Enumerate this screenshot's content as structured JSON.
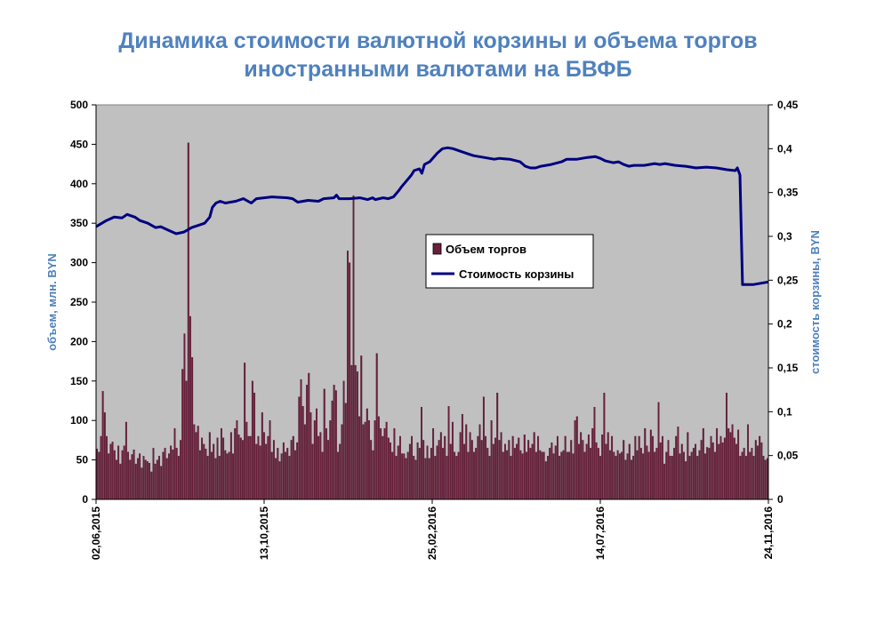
{
  "chart_data": {
    "type": "bar+line",
    "title_line1": "Динамика стоимости валютной корзины и объема торгов",
    "title_line2": "иностранными валютами на БВФБ",
    "ylabel_left": "объем, млн. BYN",
    "ylabel_right": "стоимость корзины, BYN",
    "ylim_left": [
      0,
      500
    ],
    "ylim_right": [
      0,
      0.45
    ],
    "yticks_left": [
      "0",
      "50",
      "100",
      "150",
      "200",
      "250",
      "300",
      "350",
      "400",
      "450",
      "500"
    ],
    "yticks_right": [
      "0",
      "0,05",
      "0,1",
      "0,15",
      "0,2",
      "0,25",
      "0,3",
      "0,35",
      "0,4",
      "0,45"
    ],
    "x_range": [
      "02,06,2015",
      "24,11,2016"
    ],
    "xticks": [
      "02,06,2015",
      "13,10,2015",
      "25,02,2016",
      "14,07,2016",
      "24,11,2016"
    ],
    "plot_background": "#c0c0c0",
    "legend_position": "center",
    "series": [
      {
        "name": "Объем торгов",
        "kind": "bar",
        "color": "#6b1f3b",
        "values": [
          64,
          60,
          80,
          137,
          110,
          80,
          58,
          70,
          73,
          62,
          50,
          68,
          45,
          62,
          68,
          98,
          60,
          50,
          57,
          63,
          45,
          52,
          58,
          40,
          55,
          50,
          48,
          46,
          35,
          65,
          45,
          50,
          55,
          42,
          60,
          65,
          52,
          58,
          68,
          63,
          90,
          65,
          55,
          75,
          165,
          210,
          150,
          452,
          232,
          180,
          95,
          85,
          93,
          62,
          78,
          70,
          64,
          55,
          85,
          60,
          70,
          52,
          78,
          55,
          90,
          78,
          62,
          58,
          60,
          85,
          58,
          90,
          100,
          82,
          78,
          75,
          173,
          98,
          80,
          80,
          150,
          135,
          70,
          80,
          68,
          110,
          85,
          70,
          80,
          100,
          60,
          75,
          52,
          65,
          48,
          58,
          72,
          60,
          65,
          55,
          75,
          80,
          62,
          72,
          130,
          152,
          118,
          95,
          145,
          160,
          110,
          70,
          100,
          115,
          80,
          85,
          60,
          140,
          90,
          75,
          100,
          125,
          145,
          138,
          60,
          70,
          95,
          150,
          122,
          315,
          300,
          170,
          385,
          170,
          162,
          105,
          182,
          95,
          98,
          115,
          100,
          75,
          62,
          100,
          185,
          105,
          90,
          80,
          90,
          98,
          78,
          72,
          60,
          90,
          55,
          68,
          80,
          58,
          58,
          52,
          60,
          70,
          80,
          55,
          50,
          72,
          65,
          117,
          75,
          52,
          68,
          52,
          65,
          90,
          55,
          68,
          75,
          85,
          65,
          80,
          55,
          118,
          70,
          98,
          60,
          55,
          60,
          85,
          108,
          70,
          95,
          60,
          85,
          75,
          60,
          65,
          80,
          95,
          75,
          130,
          80,
          65,
          55,
          100,
          70,
          78,
          135,
          75,
          85,
          60,
          70,
          62,
          75,
          55,
          80,
          65,
          70,
          78,
          62,
          58,
          82,
          60,
          75,
          65,
          70,
          85,
          60,
          80,
          62,
          60,
          60,
          48,
          55,
          65,
          72,
          58,
          68,
          80,
          55,
          60,
          62,
          80,
          60,
          60,
          75,
          58,
          100,
          105,
          70,
          85,
          75,
          60,
          70,
          82,
          65,
          90,
          117,
          72,
          65,
          55,
          82,
          135,
          70,
          85,
          62,
          80,
          60,
          55,
          62,
          58,
          60,
          75,
          50,
          58,
          70,
          50,
          55,
          80,
          62,
          80,
          65,
          58,
          90,
          68,
          60,
          88,
          80,
          60,
          65,
          123,
          72,
          80,
          45,
          60,
          75,
          55,
          55,
          65,
          80,
          92,
          58,
          70,
          60,
          48,
          85,
          55,
          60,
          65,
          70,
          55,
          62,
          75,
          90,
          58,
          66,
          65,
          80,
          72,
          60,
          90,
          70,
          80,
          72,
          78,
          135,
          90,
          85,
          95,
          78,
          70,
          88,
          55,
          60,
          65,
          55,
          95,
          60,
          65,
          55,
          75,
          68,
          80,
          72,
          55,
          50,
          52
        ]
      },
      {
        "name": "Стоимость корзины",
        "kind": "line",
        "color": "#000080",
        "points": [
          [
            0,
            0.311
          ],
          [
            0.02,
            0.318
          ],
          [
            0.035,
            0.322
          ],
          [
            0.05,
            0.321
          ],
          [
            0.06,
            0.325
          ],
          [
            0.075,
            0.322
          ],
          [
            0.085,
            0.318
          ],
          [
            0.1,
            0.315
          ],
          [
            0.115,
            0.31
          ],
          [
            0.125,
            0.311
          ],
          [
            0.14,
            0.307
          ],
          [
            0.155,
            0.303
          ],
          [
            0.17,
            0.305
          ],
          [
            0.185,
            0.31
          ],
          [
            0.2,
            0.313
          ],
          [
            0.21,
            0.315
          ],
          [
            0.22,
            0.322
          ],
          [
            0.225,
            0.333
          ],
          [
            0.232,
            0.338
          ],
          [
            0.24,
            0.34
          ],
          [
            0.25,
            0.338
          ],
          [
            0.27,
            0.34
          ],
          [
            0.285,
            0.343
          ],
          [
            0.3,
            0.338
          ],
          [
            0.31,
            0.343
          ],
          [
            0.34,
            0.345
          ],
          [
            0.37,
            0.344
          ],
          [
            0.38,
            0.343
          ],
          [
            0.39,
            0.339
          ],
          [
            0.41,
            0.341
          ],
          [
            0.43,
            0.34
          ],
          [
            0.44,
            0.343
          ],
          [
            0.46,
            0.344
          ],
          [
            0.465,
            0.347
          ],
          [
            0.47,
            0.343
          ],
          [
            0.49,
            0.343
          ],
          [
            0.51,
            0.344
          ],
          [
            0.525,
            0.342
          ],
          [
            0.535,
            0.344
          ],
          [
            0.54,
            0.342
          ],
          [
            0.555,
            0.344
          ],
          [
            0.565,
            0.343
          ],
          [
            0.575,
            0.345
          ],
          [
            0.585,
            0.352
          ],
          [
            0.59,
            0.356
          ],
          [
            0.6,
            0.363
          ],
          [
            0.61,
            0.37
          ],
          [
            0.615,
            0.375
          ],
          [
            0.625,
            0.377
          ],
          [
            0.63,
            0.372
          ],
          [
            0.635,
            0.382
          ],
          [
            0.645,
            0.385
          ],
          [
            0.66,
            0.395
          ],
          [
            0.67,
            0.4
          ],
          [
            0.68,
            0.401
          ],
          [
            0.69,
            0.4
          ],
          [
            0.7,
            0.398
          ],
          [
            0.71,
            0.396
          ],
          [
            0.72,
            0.394
          ],
          [
            0.73,
            0.392
          ],
          [
            0.75,
            0.39
          ],
          [
            0.76,
            0.389
          ],
          [
            0.77,
            0.388
          ],
          [
            0.78,
            0.389
          ],
          [
            0.8,
            0.388
          ],
          [
            0.82,
            0.385
          ],
          [
            0.83,
            0.38
          ],
          [
            0.84,
            0.378
          ],
          [
            0.85,
            0.378
          ],
          [
            0.86,
            0.38
          ],
          [
            0.88,
            0.382
          ],
          [
            0.9,
            0.385
          ],
          [
            0.91,
            0.388
          ],
          [
            0.93,
            0.388
          ],
          [
            0.95,
            0.39
          ],
          [
            0.965,
            0.391
          ],
          [
            0.975,
            0.389
          ],
          [
            0.985,
            0.386
          ],
          [
            1.0,
            0.384
          ],
          [
            1.01,
            0.385
          ],
          [
            1.02,
            0.382
          ],
          [
            1.03,
            0.38
          ],
          [
            1.04,
            0.381
          ],
          [
            1.06,
            0.381
          ],
          [
            1.08,
            0.383
          ],
          [
            1.09,
            0.382
          ],
          [
            1.1,
            0.383
          ],
          [
            1.12,
            0.381
          ],
          [
            1.14,
            0.38
          ],
          [
            1.16,
            0.378
          ],
          [
            1.18,
            0.379
          ],
          [
            1.2,
            0.378
          ],
          [
            1.22,
            0.376
          ],
          [
            1.236,
            0.375
          ],
          [
            1.24,
            0.378
          ],
          [
            1.245,
            0.37
          ],
          [
            1.25,
            0.245
          ],
          [
            1.26,
            0.245
          ],
          [
            1.27,
            0.245
          ],
          [
            1.28,
            0.246
          ],
          [
            1.29,
            0.247
          ],
          [
            1.3,
            0.248
          ]
        ]
      }
    ]
  }
}
